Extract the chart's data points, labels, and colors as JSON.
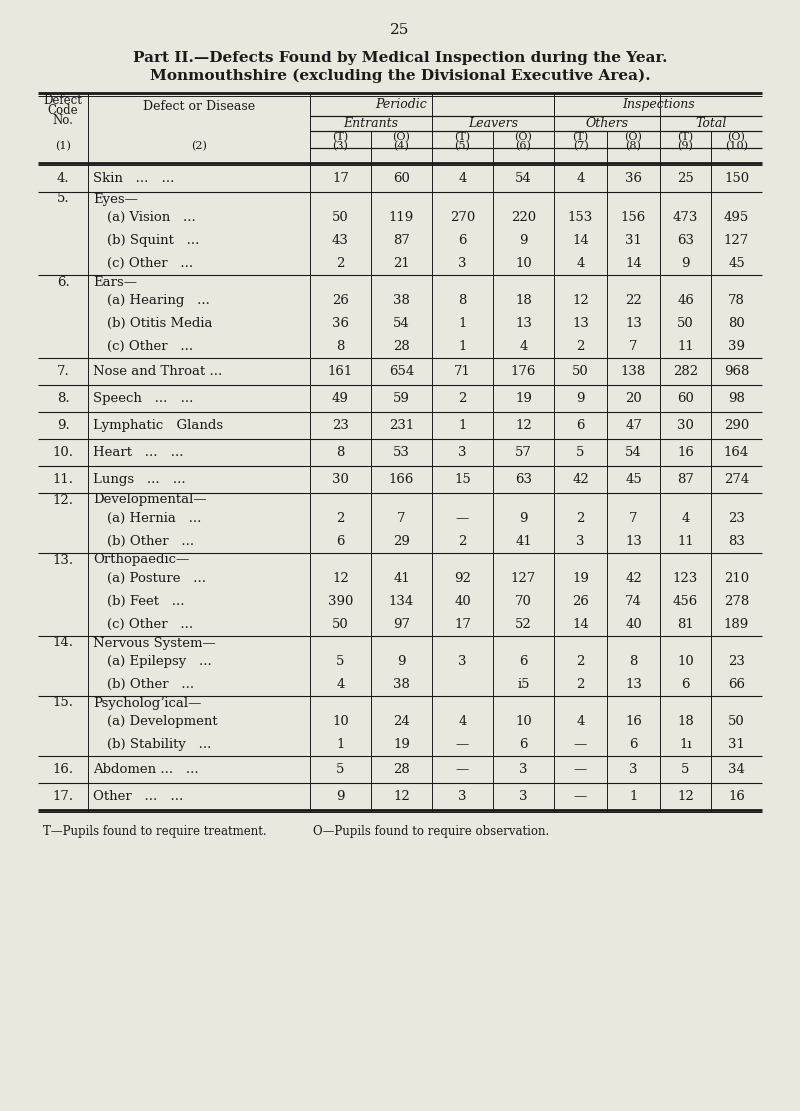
{
  "page_number": "25",
  "title_line1": "Part II.—Defects Found by Medical Inspection during the Year.",
  "title_line2": "Monmouthshire (excluding the Divisional Executive Area).",
  "bg_color": "#e9e7de",
  "footer_T": "T—Pupils found to require treatment.",
  "footer_O": "O—Pupils found to require observation.",
  "sections": [
    {
      "code": "4.",
      "label": "Skin",
      "dots": "... ...",
      "type": "single",
      "data": [
        "17",
        "60",
        "4",
        "54",
        "4",
        "36",
        "25",
        "150"
      ]
    },
    {
      "code": "5.",
      "label": "Eyes—",
      "dots": "",
      "type": "group_head",
      "data": null
    },
    {
      "code": "",
      "label": "(a) Vision",
      "dots": "...",
      "type": "sub",
      "data": [
        "50",
        "119",
        "270",
        "220",
        "153",
        "156",
        "473",
        "495"
      ]
    },
    {
      "code": "",
      "label": "(b) Squint",
      "dots": "...",
      "type": "sub",
      "data": [
        "43",
        "87",
        "6",
        "9",
        "14",
        "31",
        "63",
        "127"
      ]
    },
    {
      "code": "",
      "label": "(c) Other",
      "dots": "...",
      "type": "sub",
      "data": [
        "2",
        "21",
        "3",
        "10",
        "4",
        "14",
        "9",
        "45"
      ]
    },
    {
      "code": "6.",
      "label": "Ears—",
      "dots": "",
      "type": "group_head",
      "data": null
    },
    {
      "code": "",
      "label": "(a) Hearing",
      "dots": "...",
      "type": "sub",
      "data": [
        "26",
        "38",
        "8",
        "18",
        "12",
        "22",
        "46",
        "78"
      ]
    },
    {
      "code": "",
      "label": "(b) Otitis Media",
      "dots": "",
      "type": "sub",
      "data": [
        "36",
        "54",
        "1",
        "13",
        "13",
        "13",
        "50",
        "80"
      ]
    },
    {
      "code": "",
      "label": "(c) Other",
      "dots": "...",
      "type": "sub",
      "data": [
        "8",
        "28",
        "1",
        "4",
        "2",
        "7",
        "11",
        "39"
      ]
    },
    {
      "code": "7.",
      "label": "Nose and Throat ...",
      "dots": "",
      "type": "single",
      "data": [
        "161",
        "654",
        "71",
        "176",
        "50",
        "138",
        "282",
        "968"
      ]
    },
    {
      "code": "8.",
      "label": "Speech",
      "dots": "... ...",
      "type": "single",
      "data": [
        "49",
        "59",
        "2",
        "19",
        "9",
        "20",
        "60",
        "98"
      ]
    },
    {
      "code": "9.",
      "label": "Lymphatic Glands",
      "dots": "",
      "type": "single",
      "data": [
        "23",
        "231",
        "1",
        "12",
        "6",
        "47",
        "30",
        "290"
      ]
    },
    {
      "code": "10.",
      "label": "Heart",
      "dots": "... ...",
      "type": "single",
      "data": [
        "8",
        "53",
        "3",
        "57",
        "5",
        "54",
        "16",
        "164"
      ]
    },
    {
      "code": "11.",
      "label": "Lungs",
      "dots": "... ...",
      "type": "single",
      "data": [
        "30",
        "166",
        "15",
        "63",
        "42",
        "45",
        "87",
        "274"
      ]
    },
    {
      "code": "12.",
      "label": "Developmental—",
      "dots": "",
      "type": "group_head",
      "data": null
    },
    {
      "code": "",
      "label": "(a) Hernia",
      "dots": "...",
      "type": "sub",
      "data": [
        "2",
        "7",
        "—",
        "9",
        "2",
        "7",
        "4",
        "23"
      ]
    },
    {
      "code": "",
      "label": "(b) Other",
      "dots": "...",
      "type": "sub",
      "data": [
        "6",
        "29",
        "2",
        "41",
        "3",
        "13",
        "11",
        "83"
      ]
    },
    {
      "code": "13.",
      "label": "Orthopaedic—",
      "dots": "",
      "type": "group_head",
      "data": null
    },
    {
      "code": "",
      "label": "(a) Posture",
      "dots": "...",
      "type": "sub",
      "data": [
        "12",
        "41",
        "92",
        "127",
        "19",
        "42",
        "123",
        "210"
      ]
    },
    {
      "code": "",
      "label": "(b) Feet",
      "dots": "...",
      "type": "sub",
      "data": [
        "390",
        "134",
        "40",
        "70",
        "26",
        "74",
        "456",
        "278"
      ]
    },
    {
      "code": "",
      "label": "(c) Other",
      "dots": "...",
      "type": "sub",
      "data": [
        "50",
        "97",
        "17",
        "52",
        "14",
        "40",
        "81",
        "189"
      ]
    },
    {
      "code": "14.",
      "label": "Nervous System—",
      "dots": "",
      "type": "group_head",
      "data": null
    },
    {
      "code": "",
      "label": "(a) Epilepsy",
      "dots": "...",
      "type": "sub",
      "data": [
        "5",
        "9",
        "3",
        "6",
        "2",
        "8",
        "10",
        "23"
      ]
    },
    {
      "code": "",
      "label": "(b) Other",
      "dots": "...",
      "type": "sub",
      "data": [
        "4",
        "38",
        "",
        "i5",
        "2",
        "13",
        "6",
        "66"
      ]
    },
    {
      "code": "15.",
      "label": "Psychologʼical—",
      "dots": "",
      "type": "group_head",
      "data": null
    },
    {
      "code": "",
      "label": "(a) Development",
      "dots": "",
      "type": "sub",
      "data": [
        "10",
        "24",
        "4",
        "10",
        "4",
        "16",
        "18",
        "50"
      ]
    },
    {
      "code": "",
      "label": "(b) Stability",
      "dots": "...",
      "type": "sub",
      "data": [
        "1",
        "19",
        "—",
        "6",
        "—",
        "6",
        "1ı",
        "31"
      ]
    },
    {
      "code": "16.",
      "label": "Abdomen ...",
      "dots": "...",
      "type": "single",
      "data": [
        "5",
        "28",
        "—",
        "3",
        "—",
        "3",
        "5",
        "34"
      ]
    },
    {
      "code": "17.",
      "label": "Other",
      "dots": "... ...",
      "type": "single",
      "data": [
        "9",
        "12",
        "3",
        "3",
        "—",
        "1",
        "12",
        "16"
      ]
    }
  ]
}
